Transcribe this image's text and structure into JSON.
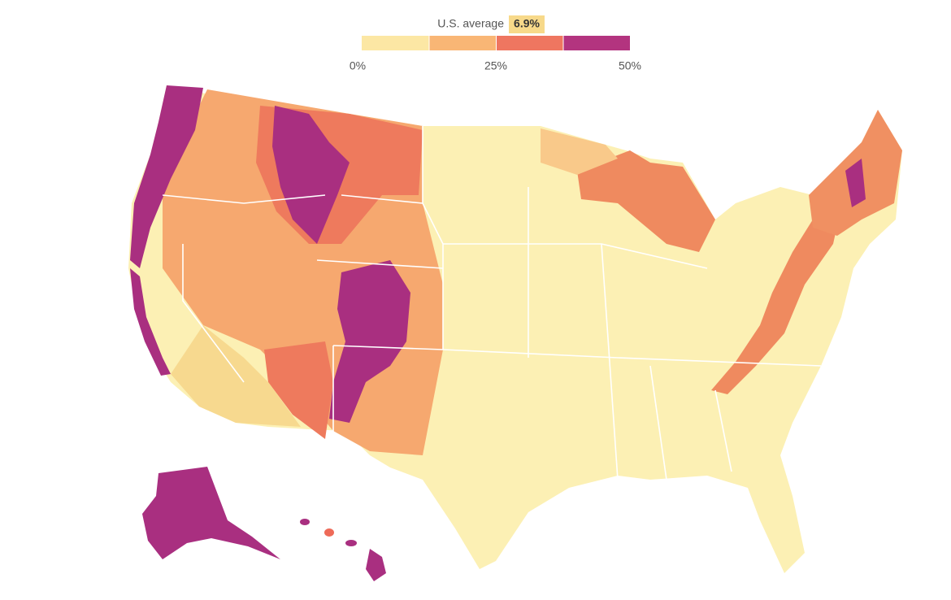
{
  "legend": {
    "label": "U.S. average",
    "average": "6.9%",
    "ticks": [
      {
        "value": 0,
        "label": "0%"
      },
      {
        "value": 25,
        "label": "25%"
      },
      {
        "value": 50,
        "label": "50%"
      }
    ],
    "colors": [
      "#fce7a4",
      "#f9b675",
      "#ef7660",
      "#b3347f"
    ]
  }
}
